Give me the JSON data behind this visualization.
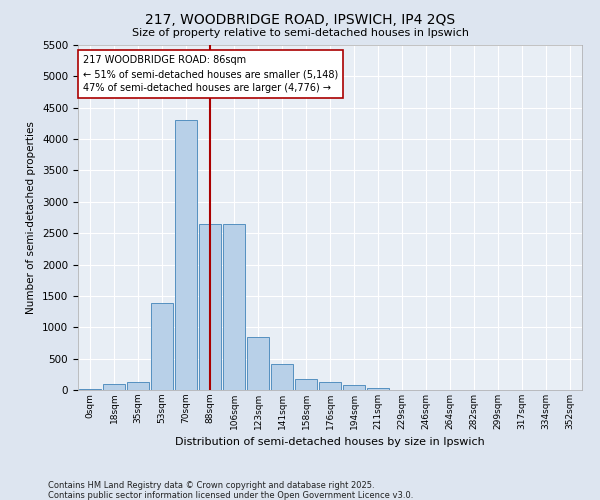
{
  "title1": "217, WOODBRIDGE ROAD, IPSWICH, IP4 2QS",
  "title2": "Size of property relative to semi-detached houses in Ipswich",
  "xlabel": "Distribution of semi-detached houses by size in Ipswich",
  "ylabel": "Number of semi-detached properties",
  "categories": [
    "0sqm",
    "18sqm",
    "35sqm",
    "53sqm",
    "70sqm",
    "88sqm",
    "106sqm",
    "123sqm",
    "141sqm",
    "158sqm",
    "176sqm",
    "194sqm",
    "211sqm",
    "229sqm",
    "246sqm",
    "264sqm",
    "282sqm",
    "299sqm",
    "317sqm",
    "334sqm",
    "352sqm"
  ],
  "values": [
    10,
    100,
    130,
    1380,
    4300,
    2650,
    2650,
    840,
    420,
    170,
    130,
    80,
    30,
    0,
    0,
    0,
    0,
    0,
    0,
    0,
    0
  ],
  "bar_color": "#b8d0e8",
  "bar_edge_color": "#5590c0",
  "vline_color": "#aa0000",
  "vline_x_index": 5,
  "annotation_title": "217 WOODBRIDGE ROAD: 86sqm",
  "annotation_line1": "← 51% of semi-detached houses are smaller (5,148)",
  "annotation_line2": "47% of semi-detached houses are larger (4,776) →",
  "annotation_box_color": "#ffffff",
  "annotation_box_edge": "#aa0000",
  "ylim": [
    0,
    5500
  ],
  "yticks": [
    0,
    500,
    1000,
    1500,
    2000,
    2500,
    3000,
    3500,
    4000,
    4500,
    5000,
    5500
  ],
  "footnote1": "Contains HM Land Registry data © Crown copyright and database right 2025.",
  "footnote2": "Contains public sector information licensed under the Open Government Licence v3.0.",
  "bg_color": "#dde5f0",
  "plot_bg_color": "#e8eef5",
  "grid_color": "#ffffff"
}
